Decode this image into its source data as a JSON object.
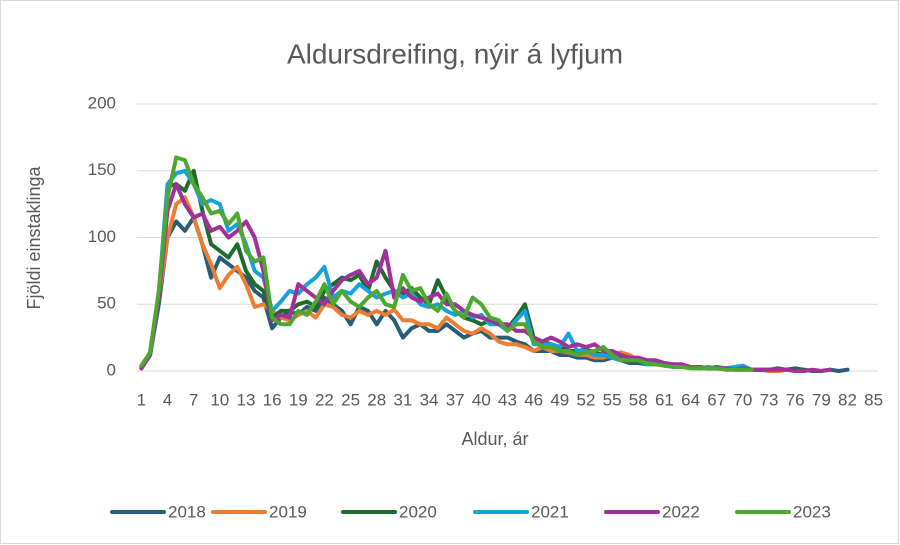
{
  "chart_data": {
    "type": "line",
    "title": "Aldursdreifing, nýir á lyfjum",
    "x_label": "Aldur, ár",
    "y_label": "Fjöldi einstaklinga",
    "categories": [
      "1",
      null,
      null,
      "4",
      null,
      null,
      "7",
      null,
      null,
      "10",
      null,
      null,
      "13",
      null,
      null,
      "16",
      null,
      null,
      "19",
      null,
      null,
      "22",
      null,
      null,
      "25",
      null,
      null,
      "28",
      null,
      null,
      "31",
      null,
      null,
      "34",
      null,
      null,
      "37",
      null,
      null,
      "40",
      null,
      null,
      "43",
      null,
      null,
      "46",
      null,
      null,
      "49",
      null,
      null,
      "52",
      null,
      null,
      "55",
      null,
      null,
      "58",
      null,
      null,
      "61",
      null,
      null,
      "64",
      null,
      null,
      "67",
      null,
      null,
      "70",
      null,
      null,
      "73",
      null,
      null,
      "76",
      null,
      null,
      "79",
      null,
      null,
      "82",
      null,
      null,
      "85"
    ],
    "ylim": [
      0,
      200
    ],
    "yticks": [
      0,
      50,
      100,
      150,
      200
    ],
    "grid": true,
    "legend": "bottom",
    "series": [
      {
        "name": "2018",
        "color": "#255e79",
        "values": [
          2,
          12,
          50,
          100,
          112,
          105,
          115,
          95,
          70,
          85,
          80,
          75,
          70,
          60,
          55,
          32,
          40,
          45,
          42,
          48,
          45,
          55,
          50,
          45,
          35,
          48,
          45,
          35,
          45,
          38,
          25,
          32,
          35,
          30,
          30,
          35,
          30,
          25,
          28,
          30,
          25,
          25,
          25,
          22,
          20,
          15,
          15,
          15,
          12,
          12,
          10,
          10,
          8,
          8,
          10,
          8,
          6,
          6,
          5,
          5,
          4,
          4,
          3,
          3,
          3,
          2,
          2,
          2,
          1,
          1,
          1,
          1,
          1,
          0,
          1,
          0,
          1,
          0,
          0,
          1,
          0,
          1,
          null,
          null,
          null
        ]
      },
      {
        "name": "2019",
        "color": "#ed7d31",
        "values": [
          3,
          12,
          55,
          100,
          125,
          130,
          115,
          95,
          80,
          62,
          72,
          78,
          65,
          48,
          50,
          45,
          40,
          38,
          42,
          45,
          40,
          50,
          48,
          42,
          40,
          45,
          42,
          45,
          42,
          46,
          38,
          38,
          35,
          35,
          32,
          40,
          35,
          30,
          28,
          32,
          28,
          22,
          20,
          20,
          18,
          15,
          18,
          15,
          15,
          14,
          12,
          12,
          10,
          10,
          12,
          14,
          12,
          8,
          7,
          6,
          5,
          4,
          4,
          3,
          2,
          2,
          2,
          1,
          2,
          1,
          1,
          1,
          0,
          0,
          1,
          1,
          null,
          null,
          null,
          null,
          null,
          null,
          null,
          null,
          null
        ]
      },
      {
        "name": "2020",
        "color": "#1f6b2d",
        "values": [
          3,
          13,
          55,
          138,
          140,
          135,
          150,
          120,
          95,
          90,
          85,
          95,
          75,
          65,
          60,
          40,
          45,
          45,
          50,
          52,
          48,
          60,
          65,
          70,
          68,
          72,
          60,
          82,
          70,
          60,
          58,
          62,
          55,
          50,
          68,
          55,
          45,
          40,
          38,
          35,
          38,
          35,
          32,
          40,
          50,
          25,
          22,
          20,
          18,
          15,
          15,
          16,
          14,
          12,
          12,
          10,
          8,
          8,
          8,
          6,
          5,
          5,
          4,
          3,
          3,
          2,
          3,
          2,
          2,
          2,
          1,
          1,
          1,
          2,
          1,
          2,
          1,
          null,
          null,
          null,
          null,
          null,
          null,
          null,
          null
        ]
      },
      {
        "name": "2021",
        "color": "#17a2dc",
        "values": [
          3,
          14,
          58,
          140,
          148,
          150,
          140,
          125,
          128,
          125,
          105,
          110,
          95,
          75,
          70,
          45,
          52,
          60,
          58,
          65,
          70,
          78,
          55,
          60,
          58,
          65,
          60,
          55,
          58,
          60,
          55,
          58,
          50,
          48,
          50,
          45,
          42,
          45,
          40,
          42,
          35,
          35,
          30,
          38,
          45,
          20,
          20,
          20,
          18,
          28,
          15,
          15,
          12,
          12,
          10,
          8,
          10,
          8,
          5,
          6,
          4,
          4,
          3,
          3,
          2,
          3,
          2,
          2,
          3,
          4,
          1,
          1,
          1,
          1,
          null,
          null,
          null,
          null,
          null,
          null,
          null,
          null,
          null,
          null,
          null
        ]
      },
      {
        "name": "2022",
        "color": "#a0309a",
        "values": [
          2,
          12,
          55,
          120,
          140,
          125,
          115,
          118,
          105,
          108,
          100,
          105,
          112,
          100,
          75,
          38,
          42,
          40,
          65,
          60,
          55,
          50,
          60,
          68,
          72,
          75,
          65,
          70,
          90,
          55,
          62,
          55,
          52,
          55,
          58,
          50,
          50,
          45,
          42,
          40,
          38,
          35,
          35,
          30,
          30,
          25,
          22,
          25,
          22,
          18,
          20,
          18,
          20,
          15,
          15,
          12,
          10,
          10,
          8,
          8,
          6,
          5,
          5,
          3,
          3,
          2,
          2,
          2,
          1,
          2,
          1,
          1,
          1,
          1,
          1,
          0,
          0,
          1,
          0,
          1,
          null,
          null,
          null,
          null,
          null
        ]
      },
      {
        "name": "2023",
        "color": "#4ea72e",
        "values": [
          4,
          14,
          60,
          130,
          160,
          158,
          140,
          130,
          118,
          120,
          110,
          118,
          90,
          82,
          85,
          40,
          35,
          35,
          45,
          42,
          52,
          65,
          50,
          60,
          52,
          48,
          55,
          60,
          50,
          48,
          72,
          60,
          62,
          50,
          45,
          58,
          45,
          40,
          55,
          50,
          40,
          38,
          30,
          35,
          35,
          22,
          18,
          18,
          15,
          15,
          12,
          14,
          15,
          18,
          12,
          8,
          8,
          8,
          6,
          5,
          4,
          3,
          3,
          2,
          2,
          2,
          2,
          1,
          1,
          1,
          1,
          null,
          null,
          null,
          null,
          null,
          null,
          null,
          null,
          null,
          null,
          null,
          null,
          null,
          null
        ]
      }
    ]
  }
}
